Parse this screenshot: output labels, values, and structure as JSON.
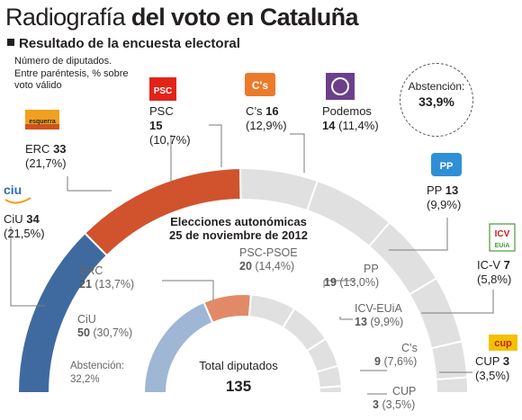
{
  "header": {
    "title_light": "Radiografía",
    "title_bold": "del voto en Cataluña",
    "subtitle": "Resultado de la encuesta electoral",
    "note": "Número de diputados. Entre paréntesis, % sobre voto válido"
  },
  "abstention_now": {
    "label": "Abstención:",
    "value": "33,9%"
  },
  "center": {
    "title_line1": "Elecciones autonómicas",
    "title_line2": "25 de noviembre de 2012",
    "total_label": "Total diputados",
    "total_value": "135"
  },
  "logos": {
    "erc": "esquerra",
    "ciu": "ciu",
    "psc": "PSC",
    "cs": "C's",
    "pp": "PP",
    "icv_line1": "ICV",
    "icv_line2": "EUiA",
    "cup": "cup"
  },
  "outer_labels": {
    "ciu": {
      "name": "CiU",
      "seats": "34",
      "pct": "(21,5%)"
    },
    "erc": {
      "name": "ERC",
      "seats": "33",
      "pct": "(21,7%)"
    },
    "psc": {
      "name": "PSC",
      "seats": "15",
      "pct": "(10,7%)"
    },
    "cs": {
      "name": "C’s",
      "seats": "16",
      "pct": "(12,9%)"
    },
    "podemos": {
      "name": "Podemos",
      "seats": "14",
      "pct": "(11,4%)"
    },
    "pp": {
      "name": "PP",
      "seats": "13",
      "pct": "(9,9%)"
    },
    "icv": {
      "name": "IC-V",
      "seats": "7",
      "pct": "(5,8%)"
    },
    "cup": {
      "name": "CUP",
      "seats": "3",
      "pct": "(3,5%)"
    }
  },
  "inner_labels": {
    "erc": {
      "name": "ERC",
      "seats": "21",
      "pct": "(13,7%)"
    },
    "ciu": {
      "name": "CiU",
      "seats": "50",
      "pct": "(30,7%)"
    },
    "abst": {
      "name": "Abstención:",
      "value": "32,2%"
    },
    "pscpsoe": {
      "name": "PSC-PSOE",
      "seats": "20",
      "pct": "(14,4%)"
    },
    "pp": {
      "name": "PP",
      "seats": "19",
      "pct": "(13,0%)"
    },
    "icveuia": {
      "name": "ICV-EUiA",
      "seats": "13",
      "pct": "(9,9%)"
    },
    "cs": {
      "name": "C’s",
      "seats": "9",
      "pct": "(7,6%)"
    },
    "cup": {
      "name": "CUP",
      "seats": "3",
      "pct": "(3,5%)"
    }
  },
  "colors": {
    "ciu": "#3f6aa0",
    "erc": "#d0532e",
    "rest": "#e0e0e0",
    "ciu_old": "#9fb6d4",
    "erc_old": "#e28a68",
    "psc": "#e2231a",
    "cs": "#ec7a2b",
    "podemos": "#6b3f8a",
    "pp": "#2f8fd6",
    "icv": "#4a9a3a",
    "cup": "#f2c200"
  },
  "chart_data": [
    {
      "type": "pie",
      "title": "Resultado de la encuesta electoral",
      "series": [
        {
          "name": "Resultado de la encuesta electoral",
          "categories": [
            "CiU",
            "ERC",
            "PSC",
            "C’s",
            "Podemos",
            "PP",
            "IC-V",
            "CUP"
          ],
          "values": [
            34,
            33,
            15,
            16,
            14,
            13,
            7,
            3
          ],
          "percent": [
            21.5,
            21.7,
            10.7,
            12.9,
            11.4,
            9.9,
            5.8,
            3.5
          ]
        }
      ],
      "abstention": "33,9%"
    },
    {
      "type": "pie",
      "title": "Elecciones autonómicas 25 de noviembre de 2012",
      "series": [
        {
          "name": "Elecciones autonómicas 25 de noviembre de 2012",
          "categories": [
            "CiU",
            "ERC",
            "PSC-PSOE",
            "PP",
            "ICV-EUiA",
            "C’s",
            "CUP"
          ],
          "values": [
            50,
            21,
            20,
            19,
            13,
            9,
            3
          ],
          "percent": [
            30.7,
            13.7,
            14.4,
            13.0,
            9.9,
            7.6,
            3.5
          ]
        }
      ],
      "abstention": "32,2%",
      "total": 135
    }
  ]
}
